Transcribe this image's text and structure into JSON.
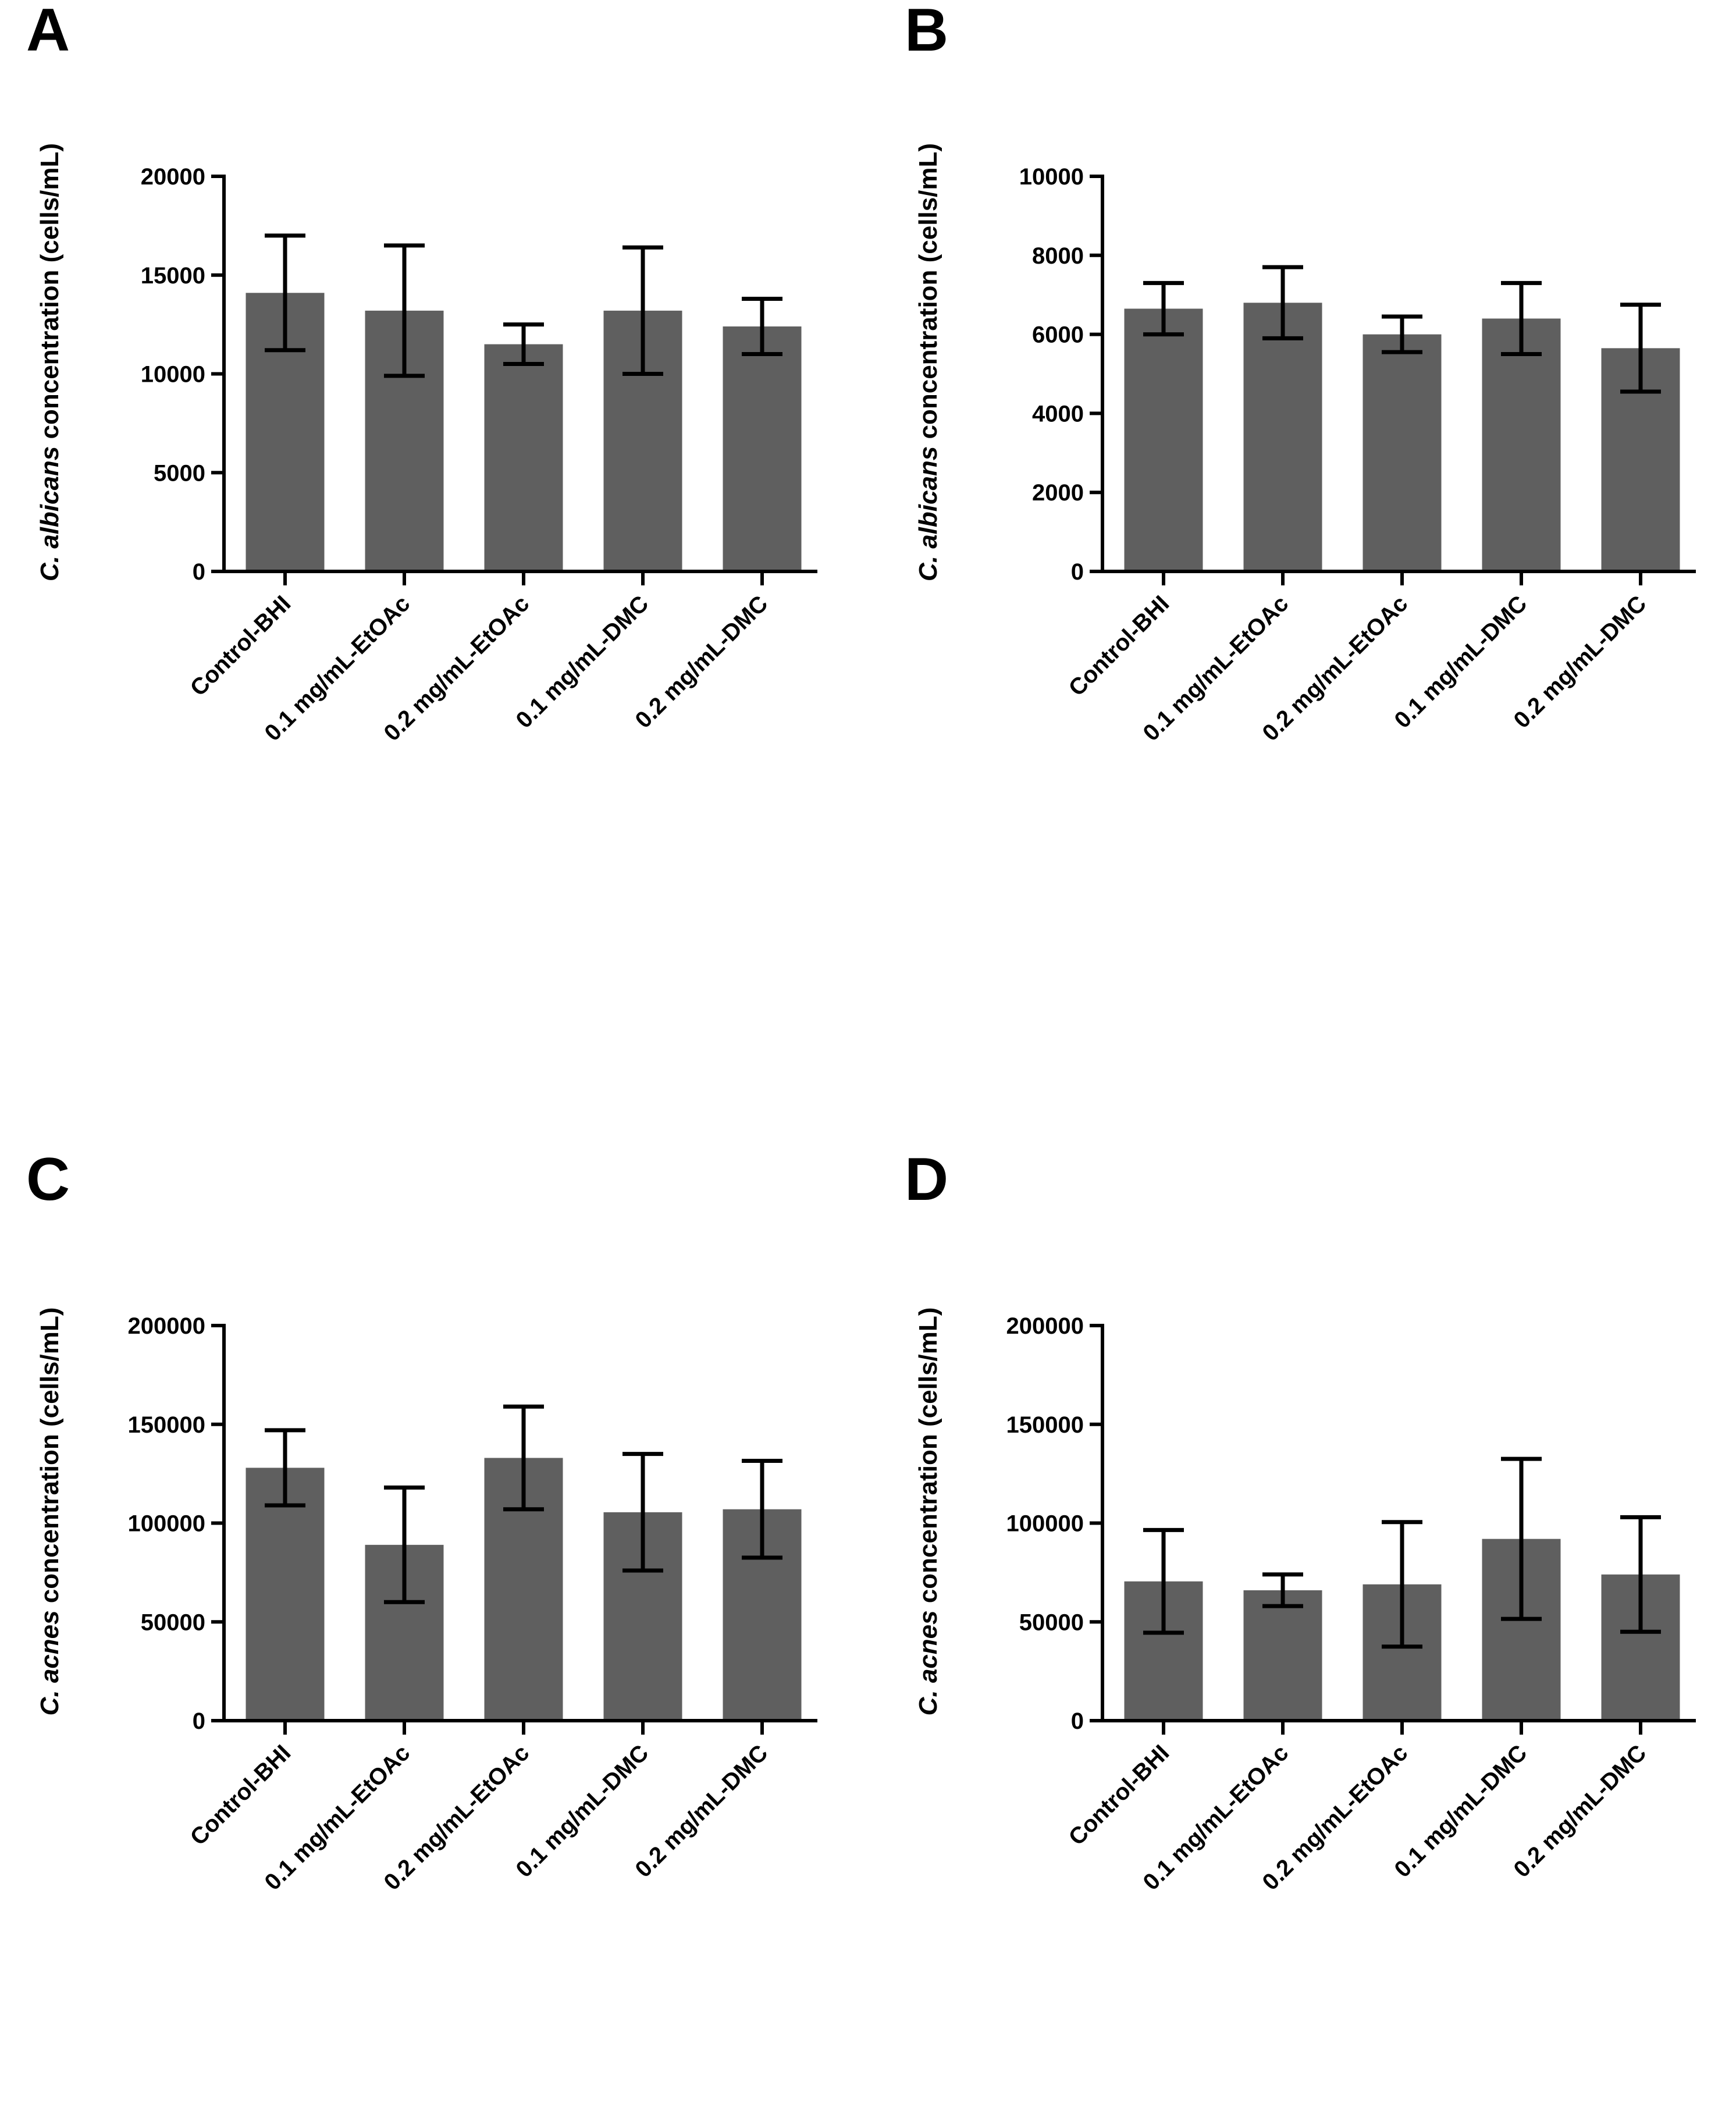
{
  "bar_color": "#5f5f5f",
  "chart_data": [
    {
      "panel": "A",
      "type": "bar",
      "categories": [
        "Control-BHI",
        "0.1 mg/mL-EtOAc",
        "0.2 mg/mL-EtOAc",
        "0.1 mg/mL-DMC",
        "0.2 mg/mL-DMC"
      ],
      "values": [
        14100,
        13200,
        11500,
        13200,
        12400
      ],
      "errors": [
        2900,
        3300,
        1000,
        3200,
        1400
      ],
      "ylabel_italic": "C. albicans",
      "ylabel_rest": " concentration (cells/mL)",
      "ylim": [
        0,
        20000
      ],
      "yticks": [
        0,
        5000,
        10000,
        15000,
        20000
      ]
    },
    {
      "panel": "B",
      "type": "bar",
      "categories": [
        "Control-BHI",
        "0.1 mg/mL-EtOAc",
        "0.2 mg/mL-EtOAc",
        "0.1 mg/mL-DMC",
        "0.2 mg/mL-DMC"
      ],
      "values": [
        6650,
        6800,
        6000,
        6400,
        5650
      ],
      "errors": [
        650,
        900,
        450,
        900,
        1100
      ],
      "ylabel_italic": "C. albicans",
      "ylabel_rest": " concentration (cells/mL)",
      "ylim": [
        0,
        10000
      ],
      "yticks": [
        0,
        2000,
        4000,
        6000,
        8000,
        10000
      ]
    },
    {
      "panel": "C",
      "type": "bar",
      "categories": [
        "Control-BHI",
        "0.1 mg/mL-EtOAc",
        "0.2 mg/mL-EtOAc",
        "0.1 mg/mL-DMC",
        "0.2 mg/mL-DMC"
      ],
      "values": [
        128000,
        89000,
        133000,
        105500,
        107000
      ],
      "errors": [
        19000,
        29000,
        26000,
        29500,
        24500
      ],
      "ylabel_italic": "C. acnes",
      "ylabel_rest": " concentration (cells/mL)",
      "ylim": [
        0,
        200000
      ],
      "yticks": [
        0,
        50000,
        100000,
        150000,
        200000
      ]
    },
    {
      "panel": "D",
      "type": "bar",
      "categories": [
        "Control-BHI",
        "0.1 mg/mL-EtOAc",
        "0.2 mg/mL-EtOAc",
        "0.1 mg/mL-DMC",
        "0.2 mg/mL-DMC"
      ],
      "values": [
        70500,
        66000,
        69000,
        92000,
        74000
      ],
      "errors": [
        26000,
        8000,
        31500,
        40500,
        29000
      ],
      "ylabel_italic": "C. acnes",
      "ylabel_rest": " concentration (cells/mL)",
      "ylim": [
        0,
        200000
      ],
      "yticks": [
        0,
        50000,
        100000,
        150000,
        200000
      ]
    }
  ]
}
